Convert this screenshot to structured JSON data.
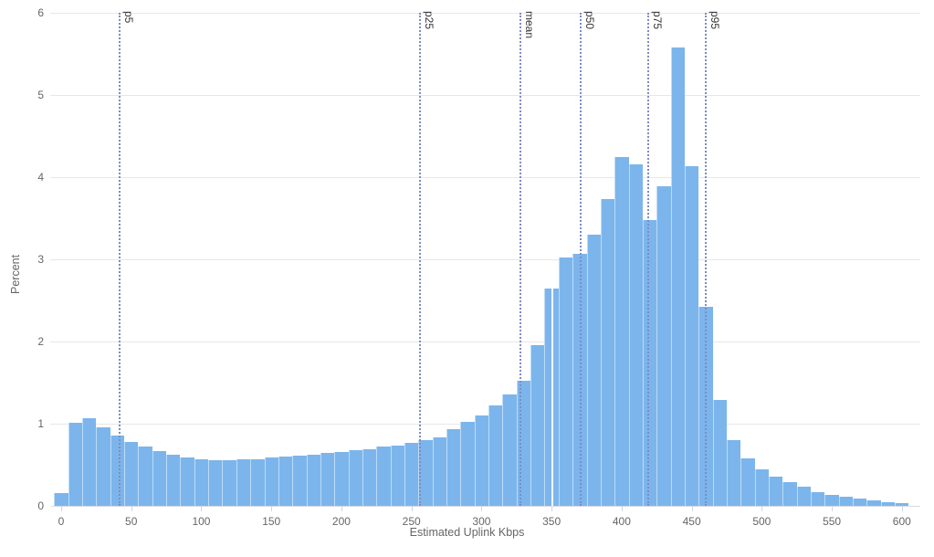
{
  "chart": {
    "x_axis_title": "Estimated Uplink Kbps",
    "y_axis_title": "Percent",
    "y_tick_labels": [
      "0",
      "1",
      "2",
      "3",
      "4",
      "5",
      "6"
    ],
    "x_tick_labels": [
      "0",
      "50",
      "100",
      "150",
      "200",
      "250",
      "300",
      "350",
      "400",
      "450",
      "500",
      "550",
      "600"
    ],
    "colors": {
      "bar_fill": "#7cb5ec",
      "bar_separator": "#ffffff",
      "gridline": "#e7e7e7",
      "axis_line": "#d6dbe4",
      "tick_label": "#666666",
      "plotline": "#7b8dc4",
      "plotline_label": "#333333",
      "background": "#ffffff"
    }
  },
  "chart_data": {
    "type": "bar",
    "title": "",
    "xlabel": "Estimated Uplink Kbps",
    "ylabel": "Percent",
    "ylim": [
      0,
      6
    ],
    "xlim": [
      -5,
      610
    ],
    "grid": "horizontal",
    "legend": "none",
    "bin_width_kbps": 10,
    "bin_centers": [
      0,
      10,
      20,
      30,
      40,
      50,
      60,
      70,
      80,
      90,
      100,
      110,
      120,
      130,
      140,
      150,
      160,
      170,
      180,
      190,
      200,
      210,
      220,
      230,
      240,
      250,
      260,
      270,
      280,
      290,
      300,
      310,
      320,
      330,
      340,
      350,
      360,
      370,
      380,
      390,
      400,
      410,
      420,
      430,
      440,
      450,
      460,
      470,
      480,
      490,
      500,
      510,
      520,
      530,
      540,
      550,
      560,
      570,
      580,
      590,
      600
    ],
    "values": [
      0.16,
      1.01,
      1.07,
      0.96,
      0.86,
      0.78,
      0.72,
      0.67,
      0.62,
      0.59,
      0.57,
      0.56,
      0.56,
      0.57,
      0.57,
      0.59,
      0.6,
      0.61,
      0.62,
      0.64,
      0.66,
      0.68,
      0.69,
      0.72,
      0.73,
      0.77,
      0.8,
      0.83,
      0.93,
      1.02,
      1.1,
      1.22,
      1.36,
      1.52,
      1.96,
      2.65,
      3.02,
      3.07,
      3.3,
      3.73,
      4.25,
      4.16,
      3.48,
      3.89,
      5.58,
      4.13,
      2.42,
      1.29,
      0.8,
      0.58,
      0.45,
      0.36,
      0.29,
      0.23,
      0.17,
      0.13,
      0.11,
      0.09,
      0.07,
      0.05,
      0.03
    ],
    "y_ticks": [
      0,
      1,
      2,
      3,
      4,
      5,
      6
    ],
    "x_ticks": [
      0,
      50,
      100,
      150,
      200,
      250,
      300,
      350,
      400,
      450,
      500,
      550,
      600
    ],
    "annotations": [
      {
        "label": "p5",
        "x_kbps": 42
      },
      {
        "label": "p25",
        "x_kbps": 256
      },
      {
        "label": "mean",
        "x_kbps": 328
      },
      {
        "label": "p50",
        "x_kbps": 371
      },
      {
        "label": "p75",
        "x_kbps": 419
      },
      {
        "label": "p95",
        "x_kbps": 460
      }
    ],
    "render_artifact": {
      "white_gap_at_kbps": 350
    }
  }
}
